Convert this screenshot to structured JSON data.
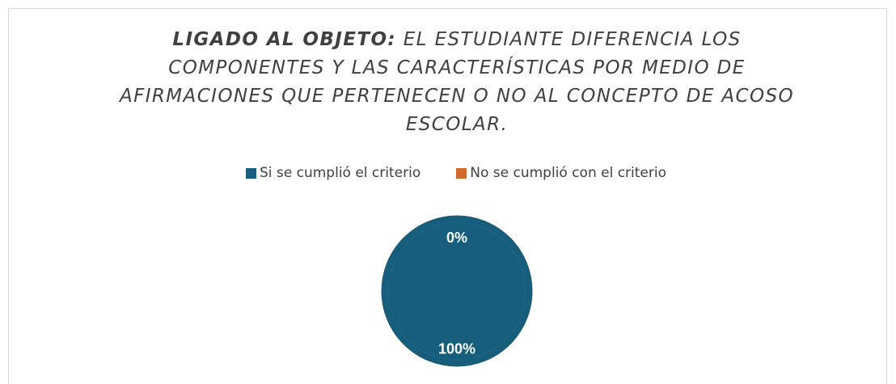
{
  "chart_data": {
    "type": "pie",
    "title": [
      "LIGADO AL OBJETO:",
      "EL ESTUDIANTE DIFERENCIA LOS COMPONENTES Y LAS CARACTERÍSTICAS POR MEDIO DE AFIRMACIONES QUE PERTENECEN O NO AL CONCEPTO DE ACOSO ESCOLAR."
    ],
    "categories": [
      "Si se cumplió el criterio",
      "No se cumplió con el criterio"
    ],
    "values": [
      100,
      0
    ],
    "value_labels": [
      "100%",
      "0%"
    ],
    "colors": [
      "#175e7d",
      "#d0692c"
    ],
    "legend": "top"
  }
}
